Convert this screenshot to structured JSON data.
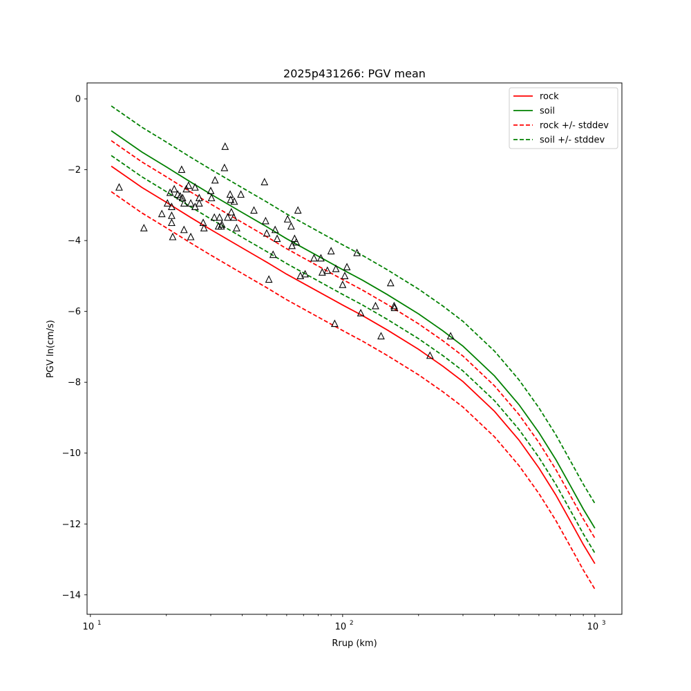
{
  "chart_data": {
    "type": "line",
    "title": "2025p431266: PGV mean",
    "xlabel": "Rrup (km)",
    "ylabel": "PGV ln(cm/s)",
    "xscale": "log",
    "xlim": [
      9.7,
      1280
    ],
    "ylim": [
      -14.55,
      0.45
    ],
    "grid": false,
    "legend_position": "top-right",
    "x_ticks": [
      {
        "value": 10,
        "base": "10",
        "exp": "1"
      },
      {
        "value": 100,
        "base": "10",
        "exp": "2"
      },
      {
        "value": 1000,
        "base": "10",
        "exp": "3"
      }
    ],
    "y_ticks": [
      {
        "value": 0,
        "label": "0"
      },
      {
        "value": -2,
        "label": "−2"
      },
      {
        "value": -4,
        "label": "−4"
      },
      {
        "value": -6,
        "label": "−6"
      },
      {
        "value": -8,
        "label": "−8"
      },
      {
        "value": -10,
        "label": "−10"
      },
      {
        "value": -12,
        "label": "−12"
      },
      {
        "value": -14,
        "label": "−14"
      }
    ],
    "curve_x": [
      12.1,
      16,
      20,
      25,
      30,
      40,
      50,
      60,
      80,
      100,
      120,
      150,
      200,
      250,
      300,
      400,
      500,
      600,
      700,
      800,
      900,
      1000
    ],
    "series": [
      {
        "name": "rock",
        "color": "#ff0000",
        "dashed": false,
        "values": [
          -1.9,
          -2.5,
          -2.92,
          -3.35,
          -3.69,
          -4.21,
          -4.61,
          -4.95,
          -5.44,
          -5.82,
          -6.12,
          -6.52,
          -7.07,
          -7.55,
          -7.98,
          -8.82,
          -9.63,
          -10.42,
          -11.18,
          -11.92,
          -12.58,
          -13.12
        ]
      },
      {
        "name": "soil",
        "color": "#008000",
        "dashed": false,
        "values": [
          -0.9,
          -1.5,
          -1.92,
          -2.35,
          -2.69,
          -3.21,
          -3.61,
          -3.95,
          -4.44,
          -4.82,
          -5.12,
          -5.52,
          -6.07,
          -6.55,
          -6.98,
          -7.82,
          -8.63,
          -9.42,
          -10.18,
          -10.92,
          -11.58,
          -12.12
        ]
      },
      {
        "name": "rock +/- stddev",
        "color": "#ff0000",
        "dashed": true,
        "values": [
          -1.18,
          -1.78,
          -2.2,
          -2.63,
          -2.97,
          -3.49,
          -3.89,
          -4.23,
          -4.72,
          -5.1,
          -5.4,
          -5.8,
          -6.35,
          -6.83,
          -7.26,
          -8.1,
          -8.91,
          -9.7,
          -10.46,
          -11.2,
          -11.86,
          -12.4
        ]
      },
      {
        "name": "",
        "color": "#ff0000",
        "dashed": true,
        "values": [
          -2.62,
          -3.22,
          -3.64,
          -4.07,
          -4.41,
          -4.93,
          -5.33,
          -5.67,
          -6.16,
          -6.54,
          -6.84,
          -7.24,
          -7.79,
          -8.27,
          -8.7,
          -9.54,
          -10.35,
          -11.14,
          -11.9,
          -12.64,
          -13.3,
          -13.84
        ]
      },
      {
        "name": "soil +/- stddev",
        "color": "#008000",
        "dashed": true,
        "values": [
          -0.2,
          -0.8,
          -1.22,
          -1.65,
          -1.99,
          -2.51,
          -2.91,
          -3.25,
          -3.74,
          -4.12,
          -4.42,
          -4.82,
          -5.37,
          -5.85,
          -6.28,
          -7.12,
          -7.93,
          -8.72,
          -9.48,
          -10.22,
          -10.88,
          -11.42
        ]
      },
      {
        "name": "",
        "color": "#008000",
        "dashed": true,
        "values": [
          -1.6,
          -2.2,
          -2.62,
          -3.05,
          -3.39,
          -3.91,
          -4.31,
          -4.65,
          -5.14,
          -5.52,
          -5.82,
          -6.22,
          -6.77,
          -7.25,
          -7.68,
          -8.52,
          -9.33,
          -10.12,
          -10.88,
          -11.62,
          -12.28,
          -12.82
        ]
      }
    ],
    "observations": [
      [
        13.0,
        -2.5
      ],
      [
        16.3,
        -3.65
      ],
      [
        19.2,
        -3.25
      ],
      [
        20.2,
        -2.95
      ],
      [
        20.7,
        -2.65
      ],
      [
        21.0,
        -3.05
      ],
      [
        21.0,
        -3.3
      ],
      [
        21.0,
        -3.5
      ],
      [
        21.2,
        -3.9
      ],
      [
        21.5,
        -2.55
      ],
      [
        22.2,
        -2.7
      ],
      [
        22.7,
        -2.75
      ],
      [
        23.0,
        -2.0
      ],
      [
        23.2,
        -2.8
      ],
      [
        23.5,
        -2.95
      ],
      [
        23.5,
        -3.7
      ],
      [
        24.0,
        -2.55
      ],
      [
        24.5,
        -2.45
      ],
      [
        25.0,
        -2.95
      ],
      [
        25.0,
        -3.9
      ],
      [
        26.0,
        -2.5
      ],
      [
        26.0,
        -3.05
      ],
      [
        27.0,
        -2.8
      ],
      [
        27.0,
        -2.95
      ],
      [
        28.0,
        -3.5
      ],
      [
        28.2,
        -3.65
      ],
      [
        30.0,
        -2.6
      ],
      [
        30.2,
        -2.8
      ],
      [
        31.0,
        -3.35
      ],
      [
        31.2,
        -2.3
      ],
      [
        32.2,
        -3.6
      ],
      [
        32.5,
        -3.35
      ],
      [
        33.0,
        -3.6
      ],
      [
        33.2,
        -3.55
      ],
      [
        34.0,
        -1.95
      ],
      [
        34.2,
        -1.35
      ],
      [
        35.0,
        -3.35
      ],
      [
        35.8,
        -2.7
      ],
      [
        36.0,
        -2.85
      ],
      [
        36.2,
        -3.2
      ],
      [
        37.0,
        -3.35
      ],
      [
        37.2,
        -2.9
      ],
      [
        38.0,
        -3.65
      ],
      [
        39.5,
        -2.7
      ],
      [
        44.5,
        -3.15
      ],
      [
        49.0,
        -2.35
      ],
      [
        49.5,
        -3.45
      ],
      [
        50.0,
        -3.8
      ],
      [
        51.0,
        -5.1
      ],
      [
        53.0,
        -4.4
      ],
      [
        54.0,
        -3.7
      ],
      [
        55.0,
        -3.95
      ],
      [
        60.5,
        -3.4
      ],
      [
        62.5,
        -3.6
      ],
      [
        63.0,
        -4.15
      ],
      [
        64.5,
        -3.95
      ],
      [
        65.5,
        -4.05
      ],
      [
        66.5,
        -3.15
      ],
      [
        68.0,
        -5.0
      ],
      [
        71.0,
        -4.95
      ],
      [
        77.0,
        -4.5
      ],
      [
        82.0,
        -4.5
      ],
      [
        83.0,
        -4.9
      ],
      [
        87.0,
        -4.85
      ],
      [
        90.0,
        -4.3
      ],
      [
        93.0,
        -6.35
      ],
      [
        94.0,
        -4.8
      ],
      [
        100.0,
        -5.25
      ],
      [
        102.0,
        -5.0
      ],
      [
        104.0,
        -4.75
      ],
      [
        114.0,
        -4.35
      ],
      [
        118.0,
        -6.05
      ],
      [
        135.0,
        -5.85
      ],
      [
        142.0,
        -6.7
      ],
      [
        155.0,
        -5.2
      ],
      [
        160.0,
        -5.85
      ],
      [
        160.5,
        -5.9
      ],
      [
        222.0,
        -7.25
      ],
      [
        268.0,
        -6.7
      ]
    ]
  }
}
